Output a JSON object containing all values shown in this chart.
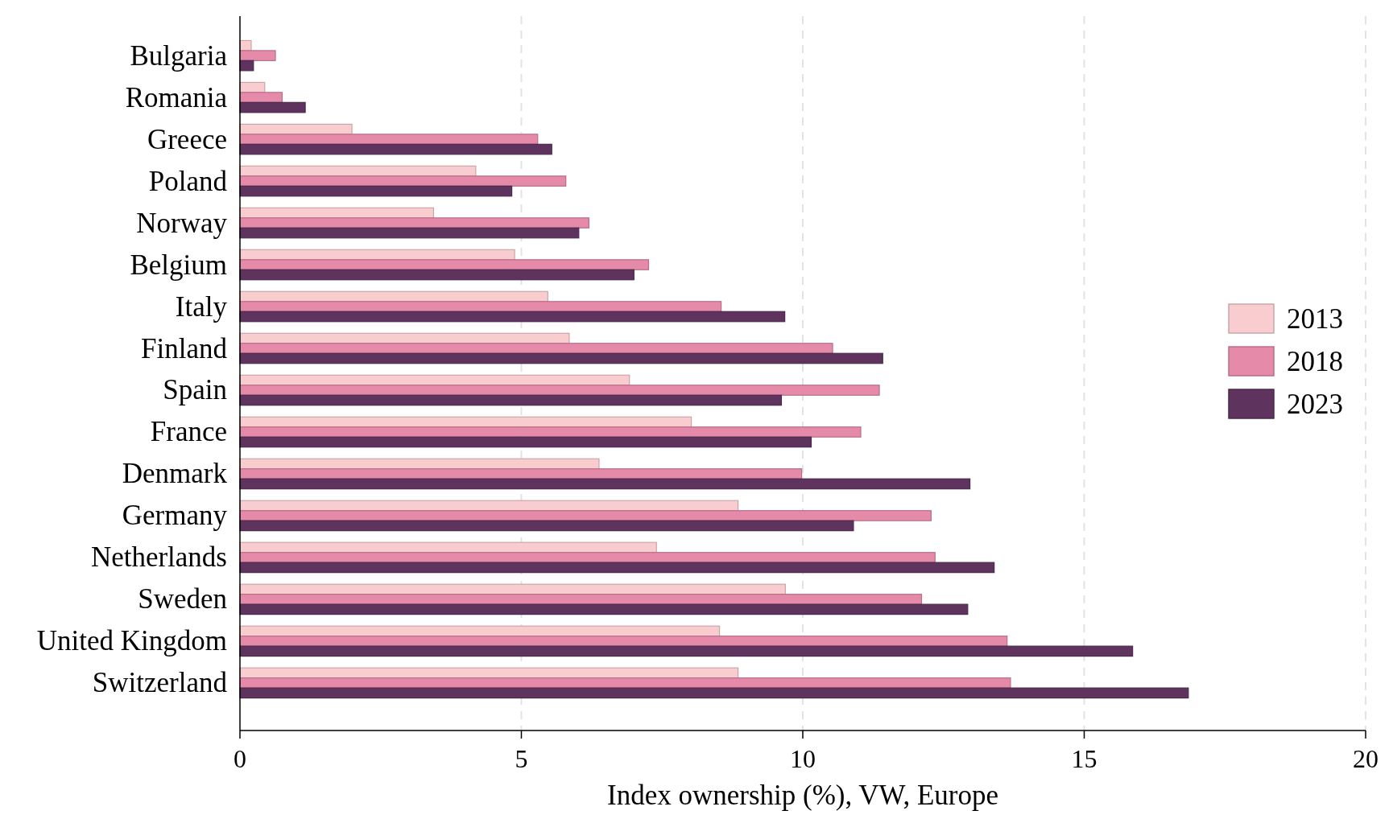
{
  "chart_data": {
    "type": "bar",
    "orientation": "horizontal",
    "xlabel": "Index ownership (%), VW, Europe",
    "categories": [
      "Bulgaria",
      "Romania",
      "Greece",
      "Poland",
      "Norway",
      "Belgium",
      "Italy",
      "Finland",
      "Spain",
      "France",
      "Denmark",
      "Germany",
      "Netherlands",
      "Sweden",
      "United Kingdom",
      "Switzerland"
    ],
    "series": [
      {
        "name": "2013",
        "color": "#f9cdd0",
        "values": [
          0.2,
          0.44,
          1.99,
          4.19,
          3.44,
          4.88,
          5.47,
          5.85,
          6.92,
          8.02,
          6.38,
          8.85,
          7.4,
          9.69,
          8.52,
          8.85
        ]
      },
      {
        "name": "2018",
        "color": "#e58aa8",
        "values": [
          0.63,
          0.75,
          5.29,
          5.79,
          6.2,
          7.26,
          8.55,
          10.53,
          11.36,
          11.03,
          9.98,
          12.28,
          12.35,
          12.11,
          13.63,
          13.69
        ]
      },
      {
        "name": "2023",
        "color": "#5e335e",
        "values": [
          0.24,
          1.16,
          5.54,
          4.83,
          6.02,
          7.0,
          9.68,
          11.42,
          9.62,
          10.15,
          12.97,
          10.9,
          13.4,
          12.93,
          15.86,
          16.85
        ]
      }
    ],
    "xlim": [
      0,
      20
    ],
    "xticks": [
      0,
      5,
      10,
      15,
      20
    ],
    "grid": "x",
    "legend": "right"
  }
}
